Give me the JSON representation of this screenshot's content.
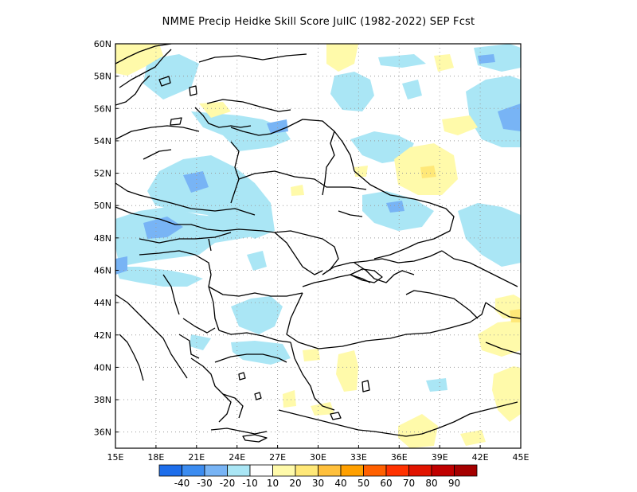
{
  "title": "NMME Precip Heidke Skill Score JulIC (1982-2022) SEP Fcst",
  "map": {
    "lon_labels": [
      "15E",
      "18E",
      "21E",
      "24E",
      "27E",
      "30E",
      "33E",
      "36E",
      "39E",
      "42E",
      "45E"
    ],
    "lat_labels": [
      "60N",
      "58N",
      "56N",
      "54N",
      "52N",
      "50N",
      "48N",
      "46N",
      "44N",
      "42N",
      "40N",
      "38N",
      "36N"
    ],
    "lon_range": [
      15,
      45
    ],
    "lat_range": [
      35,
      60
    ],
    "grid": "dotted",
    "background_value": "0 (white, |HSS| < 10)"
  },
  "colorbar": {
    "colors": [
      "#1e6eeb",
      "#3c8cf0",
      "#78b4f5",
      "#aae6f5",
      "#ffffff",
      "#fffaaa",
      "#ffe878",
      "#ffc03c",
      "#ffa000",
      "#ff6000",
      "#ff3200",
      "#e11400",
      "#c00000",
      "#a50000"
    ],
    "labels": [
      "-40",
      "-30",
      "-20",
      "-10",
      "10",
      "20",
      "30",
      "40",
      "50",
      "60",
      "70",
      "80",
      "90"
    ]
  }
}
